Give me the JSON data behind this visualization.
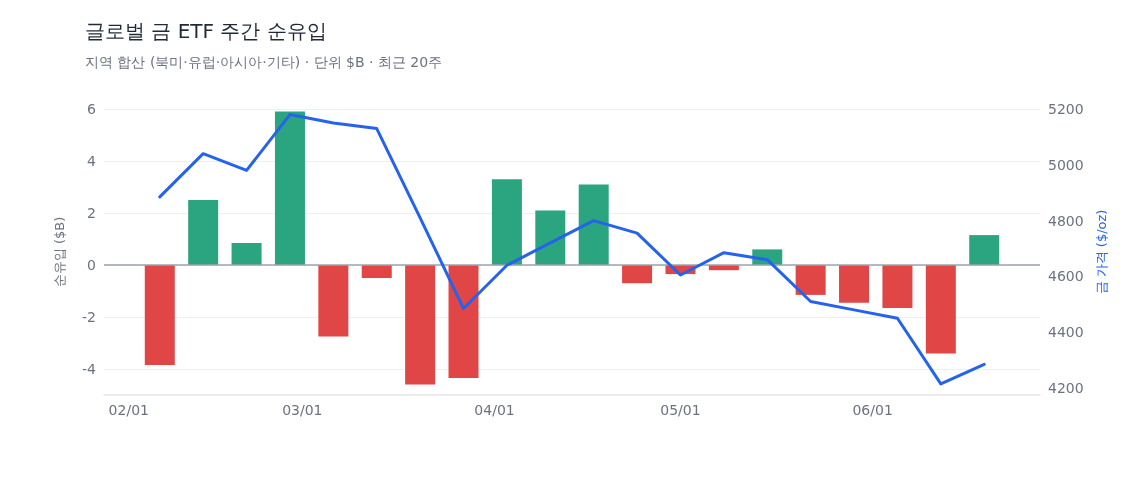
{
  "chart_data": {
    "type": "bar",
    "title": "글로벌 금 ETF 주간 순유입",
    "subtitle": "지역 합산 (북미·유럽·아시아·기타) · 단위 $B · 최근 20주",
    "ylabel": "순유입 ($B)",
    "y2label": "금 가격 ($/oz)",
    "x": [
      "--02-06",
      "--02-13",
      "--02-20",
      "--02-27",
      "--03-06",
      "--03-13",
      "--03-20",
      "--03-27",
      "--04-03",
      "--04-10",
      "--04-17",
      "--04-24",
      "--05-01",
      "--05-08",
      "--05-15",
      "--05-22",
      "--05-29",
      "--06-05",
      "--06-12",
      "--06-19"
    ],
    "series": [
      {
        "colors": [
          "#e04646",
          "#2ba57f",
          "#2ba57f",
          "#2ba57f",
          "#e04646",
          "#e04646",
          "#e04646",
          "#e04646",
          "#2ba57f",
          "#2ba57f",
          "#2ba57f",
          "#e04646",
          "#e04646",
          "#e04646",
          "#2ba57f",
          "#e04646",
          "#e04646",
          "#e04646",
          "#e04646",
          "#2ba57f"
        ],
        "values": [
          -3.85,
          2.5,
          0.85,
          5.9,
          -2.75,
          -0.5,
          -4.6,
          -4.35,
          3.3,
          2.1,
          3.1,
          -0.7,
          -0.35,
          -0.2,
          0.6,
          -1.15,
          -1.45,
          -1.65,
          -3.4,
          1.15
        ]
      },
      {
        "type": "line",
        "axis": "y2",
        "color": "#2563eb",
        "values": [
          4885,
          5040,
          4980,
          5180,
          5150,
          5130,
          4810,
          4485,
          4640,
          4720,
          4800,
          4755,
          4605,
          4685,
          4660,
          4510,
          4480,
          4450,
          4215,
          4285
        ]
      }
    ],
    "xlim": [
      "--01-28",
      "--06-28"
    ],
    "xticks": [
      {
        "value": "--02-01",
        "label": "02/01"
      },
      {
        "value": "--03-01",
        "label": "03/01"
      },
      {
        "value": "--04-01",
        "label": "04/01"
      },
      {
        "value": "--05-01",
        "label": "05/01"
      },
      {
        "value": "--06-01",
        "label": "06/01"
      }
    ],
    "ylim": [
      -5,
      6
    ],
    "yticks": [
      -4,
      -2,
      0,
      2,
      4,
      6
    ],
    "y2lim": [
      4175,
      5200
    ],
    "y2ticks": [
      4200,
      4400,
      4600,
      4800,
      5000,
      5200
    ],
    "ref_lines": [
      {
        "axis": "y",
        "value": 0,
        "color": "#9ca3af"
      }
    ],
    "grid": "y",
    "marker": "none",
    "line_style": "solid"
  }
}
